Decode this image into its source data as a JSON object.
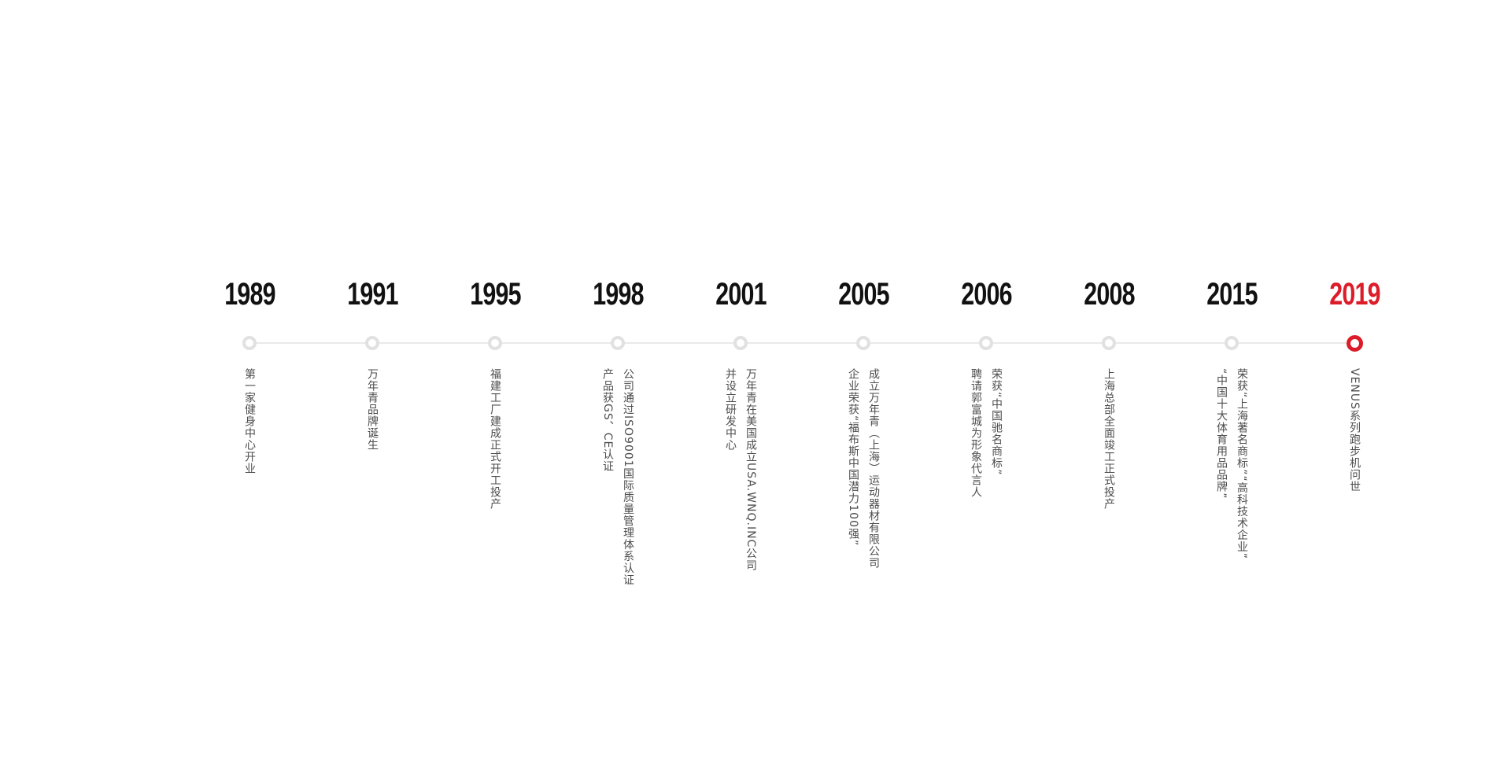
{
  "timeline": {
    "colors": {
      "highlight": "#dd1c2a",
      "year": "#111111",
      "text": "#4d4d4d",
      "line": "#e9e9e9",
      "dot_ring": "#e1e1e1"
    },
    "items": [
      {
        "year": "1989",
        "highlight": false,
        "lines": [
          "第一家健身中心开业"
        ]
      },
      {
        "year": "1991",
        "highlight": false,
        "lines": [
          "万年青品牌诞生"
        ]
      },
      {
        "year": "1995",
        "highlight": false,
        "lines": [
          "福建工厂建成正式开工投产"
        ]
      },
      {
        "year": "1998",
        "highlight": false,
        "lines": [
          "公司通过ISO9001国际质量管理体系认证",
          "产品获GS、CE认证"
        ]
      },
      {
        "year": "2001",
        "highlight": false,
        "lines": [
          "万年青在美国成立USA.WNQ.INC公司",
          "并设立研发中心"
        ]
      },
      {
        "year": "2005",
        "highlight": false,
        "lines": [
          "成立万年青（上海）运动器材有限公司",
          "企业荣获“福布斯中国潜力100强”"
        ]
      },
      {
        "year": "2006",
        "highlight": false,
        "lines": [
          "荣获“中国驰名商标”",
          "聘请郭富城为形象代言人"
        ]
      },
      {
        "year": "2008",
        "highlight": false,
        "lines": [
          "上海总部全面竣工正式投产"
        ]
      },
      {
        "year": "2015",
        "highlight": false,
        "lines": [
          "荣获“上海著名商标”“高科技术企业”",
          "“中国十大体育用品品牌”"
        ]
      },
      {
        "year": "2019",
        "highlight": true,
        "lines": [
          "VENUS系列跑步机问世"
        ]
      }
    ]
  }
}
